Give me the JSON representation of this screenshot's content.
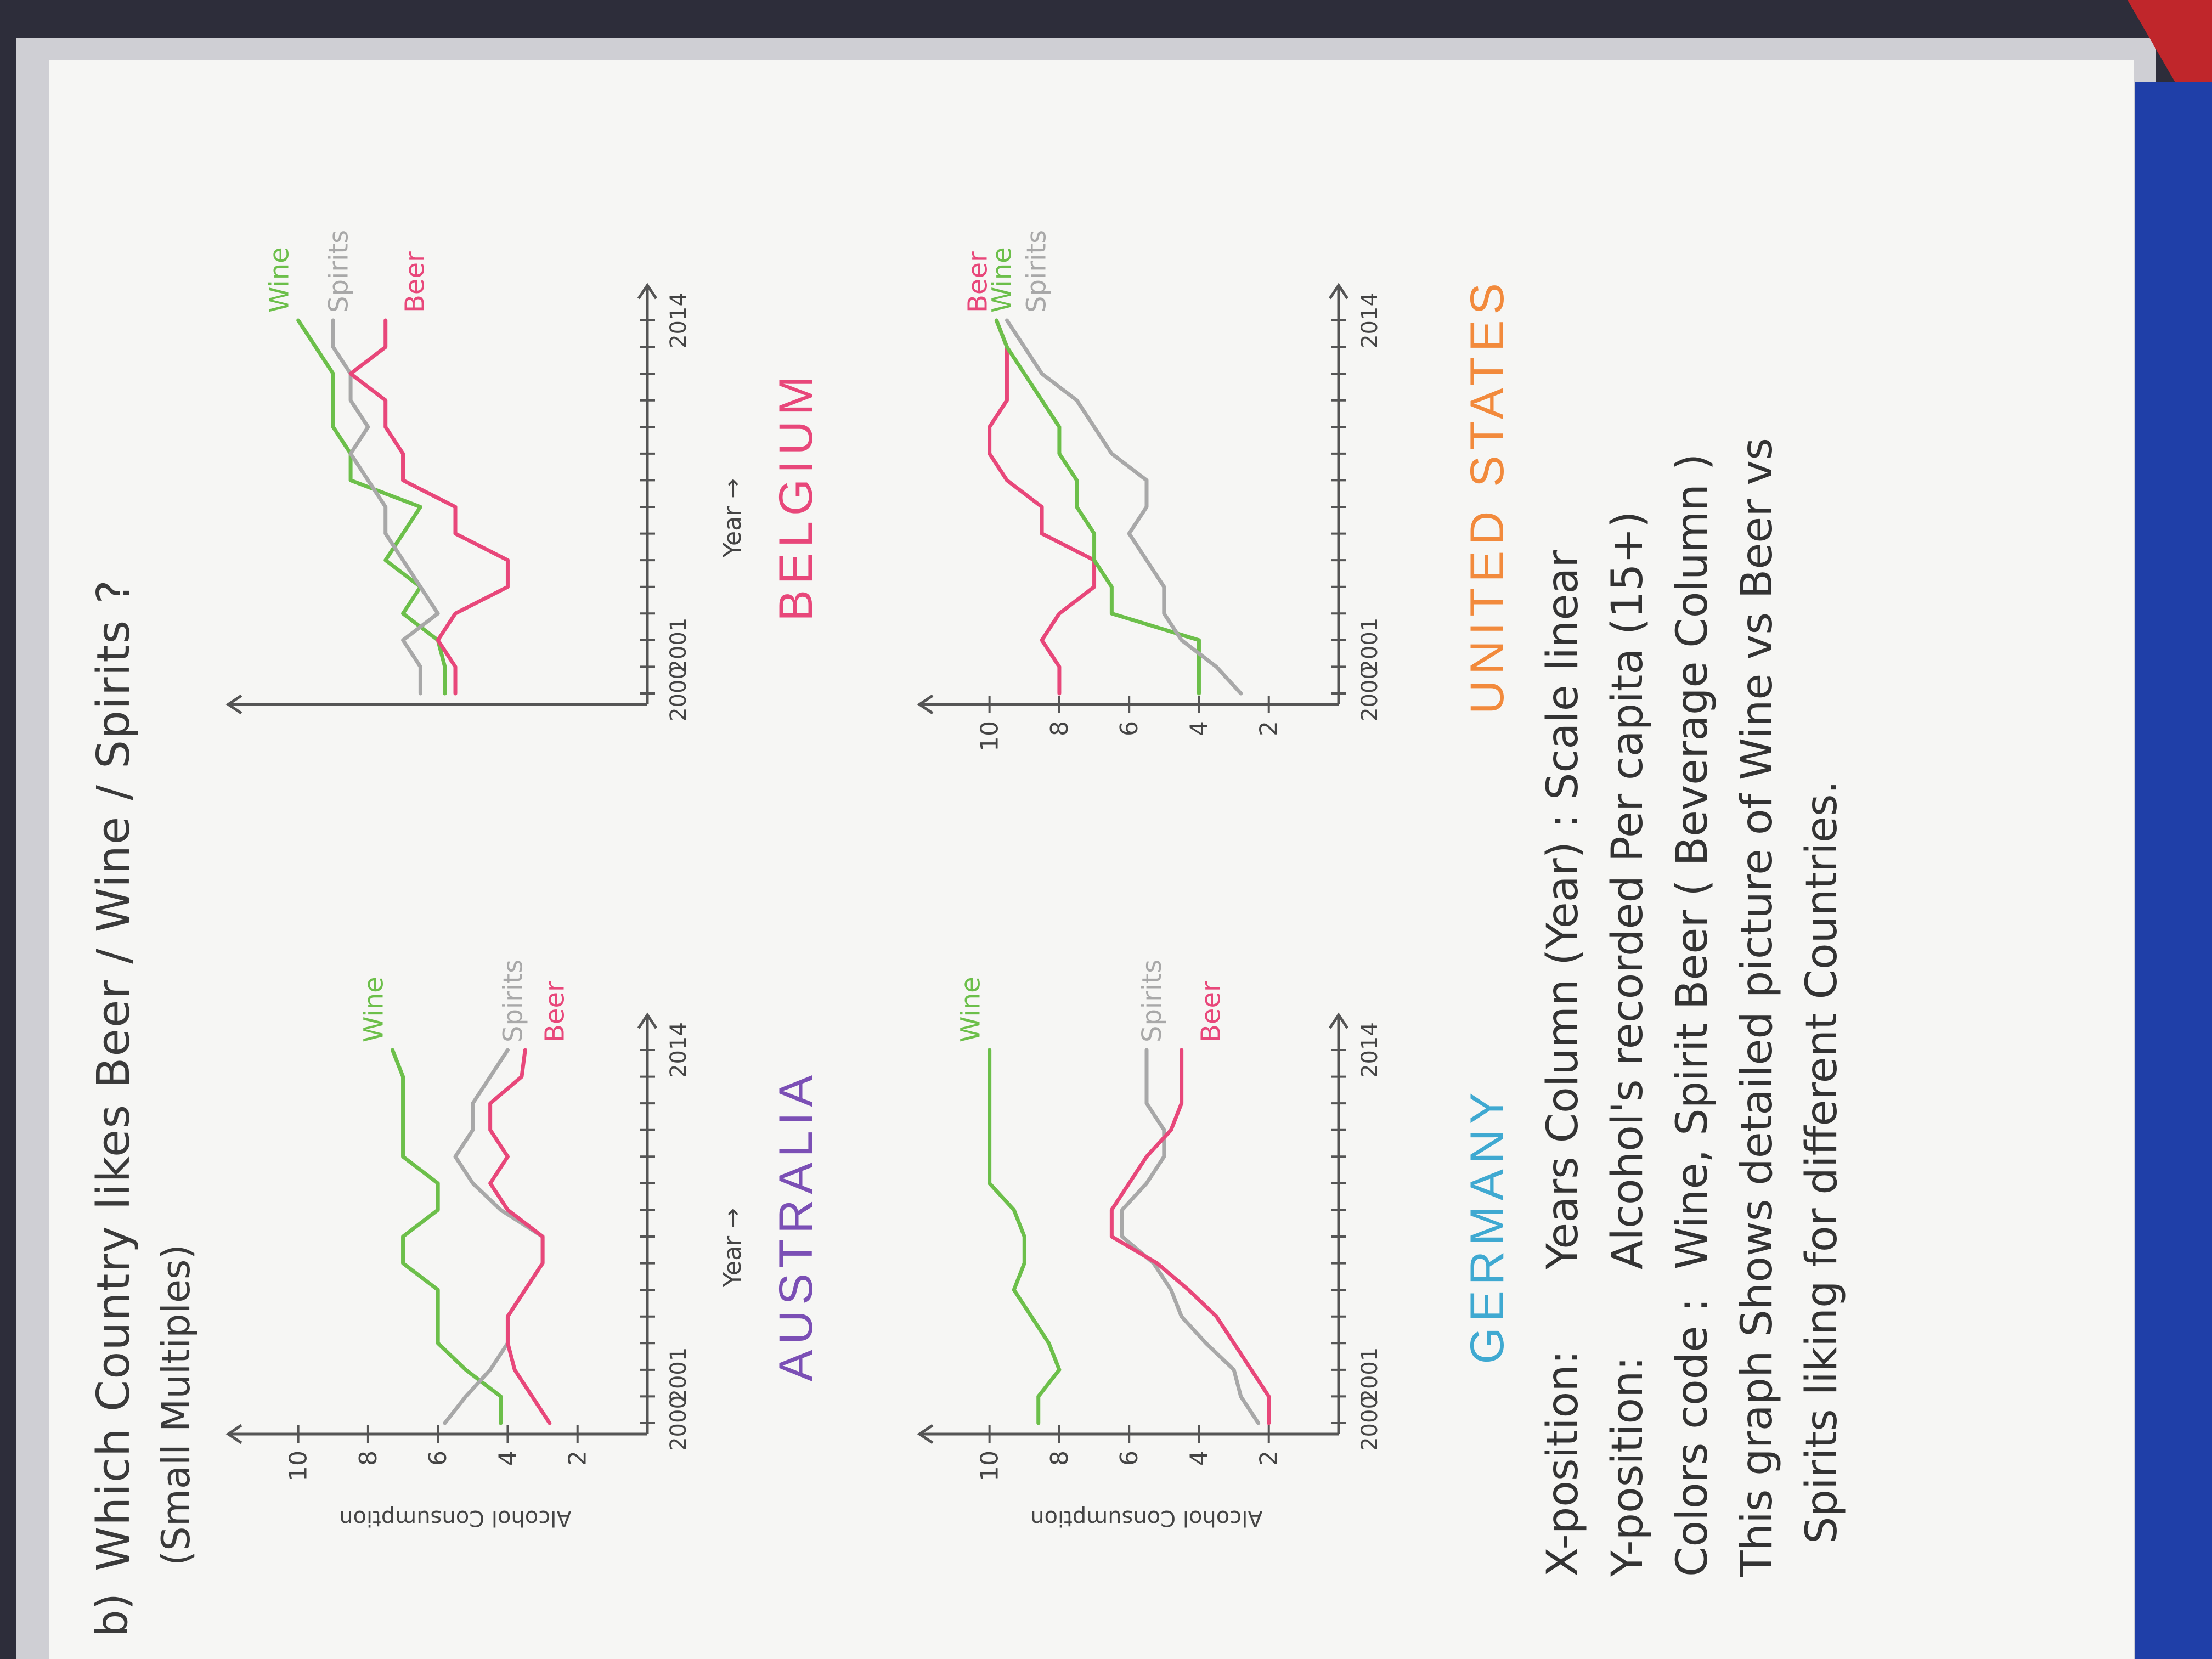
{
  "page": {
    "question_number": "b)",
    "title": "Which Country likes Beer / Wine / Spirits ?",
    "subtitle": "(Small Multiples)"
  },
  "chart_data": [
    {
      "type": "line",
      "title": "AUSTRALIA",
      "xlabel": "Year →",
      "ylabel": "Alcohol Consumption",
      "x_ticks": [
        "2000",
        "2001",
        "2014"
      ],
      "y_ticks": [
        "2",
        "4",
        "6",
        "8",
        "10"
      ],
      "ylim": [
        0,
        11
      ],
      "x": [
        0,
        1,
        2,
        3,
        4,
        5,
        6,
        7,
        8,
        9,
        10,
        11,
        12,
        13,
        14
      ],
      "series": [
        {
          "name": "Wine",
          "color": "#6cbf4a",
          "values": [
            4.2,
            4.2,
            5.2,
            6.0,
            6.0,
            6.0,
            7.0,
            7.0,
            6.0,
            6.0,
            7.0,
            7.0,
            7.0,
            7.0,
            7.3
          ]
        },
        {
          "name": "Spirits",
          "color": "#a8a8a8",
          "values": [
            5.8,
            5.2,
            4.5,
            4.0,
            4.0,
            3.5,
            3.0,
            3.0,
            4.2,
            5.0,
            5.5,
            5.0,
            5.0,
            4.5,
            4.0
          ]
        },
        {
          "name": "Beer",
          "color": "#e8477a",
          "values": [
            2.8,
            3.3,
            3.8,
            4.0,
            4.0,
            3.5,
            3.0,
            3.0,
            4.0,
            4.5,
            4.0,
            4.5,
            4.5,
            3.6,
            3.5
          ]
        }
      ]
    },
    {
      "type": "line",
      "title": "BELGIUM",
      "xlabel": "Year →",
      "ylabel": "",
      "x_ticks": [
        "2000",
        "2001",
        "2014"
      ],
      "y_ticks": [],
      "ylim": [
        0,
        11
      ],
      "x": [
        0,
        1,
        2,
        3,
        4,
        5,
        6,
        7,
        8,
        9,
        10,
        11,
        12,
        13,
        14
      ],
      "series": [
        {
          "name": "Wine",
          "color": "#6cbf4a",
          "values": [
            5.8,
            5.8,
            6.0,
            7.0,
            6.5,
            7.5,
            7.0,
            6.5,
            8.5,
            8.5,
            9.0,
            9.0,
            9.0,
            9.5,
            10.0
          ]
        },
        {
          "name": "Spirits",
          "color": "#a8a8a8",
          "values": [
            6.5,
            6.5,
            7.0,
            6.0,
            6.5,
            7.0,
            7.5,
            7.5,
            8.0,
            8.5,
            8.0,
            8.5,
            8.5,
            9.0,
            9.0
          ]
        },
        {
          "name": "Beer",
          "color": "#e8477a",
          "values": [
            5.5,
            5.5,
            6.0,
            5.5,
            4.0,
            4.0,
            5.5,
            5.5,
            7.0,
            7.0,
            7.5,
            7.5,
            8.5,
            7.5,
            7.5
          ]
        }
      ]
    },
    {
      "type": "line",
      "title": "GERMANY",
      "xlabel": "",
      "ylabel": "Alcohol Consumption",
      "x_ticks": [
        "2000",
        "2001",
        "2014"
      ],
      "y_ticks": [
        "2",
        "4",
        "6",
        "8",
        "10"
      ],
      "ylim": [
        0,
        11
      ],
      "x": [
        0,
        1,
        2,
        3,
        4,
        5,
        6,
        7,
        8,
        9,
        10,
        11,
        12,
        13,
        14
      ],
      "series": [
        {
          "name": "Wine",
          "color": "#6cbf4a",
          "values": [
            8.6,
            8.6,
            8.0,
            8.3,
            8.8,
            9.3,
            9.0,
            9.0,
            9.3,
            10.0,
            10.0,
            10.0,
            10.0,
            10.0,
            10.0
          ]
        },
        {
          "name": "Spirits",
          "color": "#a8a8a8",
          "values": [
            2.3,
            2.8,
            3.0,
            3.8,
            4.5,
            4.8,
            5.3,
            6.2,
            6.2,
            5.5,
            5.0,
            5.0,
            5.5,
            5.5,
            5.5
          ]
        },
        {
          "name": "Beer",
          "color": "#e8477a",
          "values": [
            2.0,
            2.0,
            2.5,
            3.0,
            3.5,
            4.3,
            5.2,
            6.5,
            6.5,
            6.0,
            5.5,
            4.8,
            4.5,
            4.5,
            4.5
          ]
        }
      ]
    },
    {
      "type": "line",
      "title": "UNITED STATES",
      "xlabel": "",
      "ylabel": "",
      "x_ticks": [
        "2000",
        "2001",
        "2014"
      ],
      "y_ticks": [
        "2",
        "4",
        "6",
        "8",
        "10"
      ],
      "ylim": [
        0,
        11
      ],
      "x": [
        0,
        1,
        2,
        3,
        4,
        5,
        6,
        7,
        8,
        9,
        10,
        11,
        12,
        13,
        14
      ],
      "series": [
        {
          "name": "Beer",
          "color": "#e8477a",
          "values": [
            8.0,
            8.0,
            8.5,
            8.0,
            7.0,
            7.0,
            8.5,
            8.5,
            9.5,
            10.0,
            10.0,
            9.5,
            9.5,
            9.5,
            9.8
          ]
        },
        {
          "name": "Wine",
          "color": "#6cbf4a",
          "values": [
            4.0,
            4.0,
            4.0,
            6.5,
            6.5,
            7.0,
            7.0,
            7.5,
            7.5,
            8.0,
            8.0,
            8.5,
            9.0,
            9.5,
            9.8
          ]
        },
        {
          "name": "Spirits",
          "color": "#a8a8a8",
          "values": [
            2.8,
            3.5,
            4.5,
            5.0,
            5.0,
            5.5,
            6.0,
            5.5,
            5.5,
            6.5,
            7.0,
            7.5,
            8.5,
            9.0,
            9.5
          ]
        }
      ]
    }
  ],
  "notes": {
    "x_key": "X-position:",
    "x_val": "Years Column (Year) : Scale linear",
    "y_key": "Y-position:",
    "y_val": "Alcohol's recorded Per capita (15+)",
    "c_key": "Colors code :",
    "c_val": "Wine, Spirit Beer  ( Beverage Column )",
    "summary1": "This graph Shows detailed picture of Wine vs Beer vs",
    "summary2": "Spirits liking for different Countries."
  }
}
